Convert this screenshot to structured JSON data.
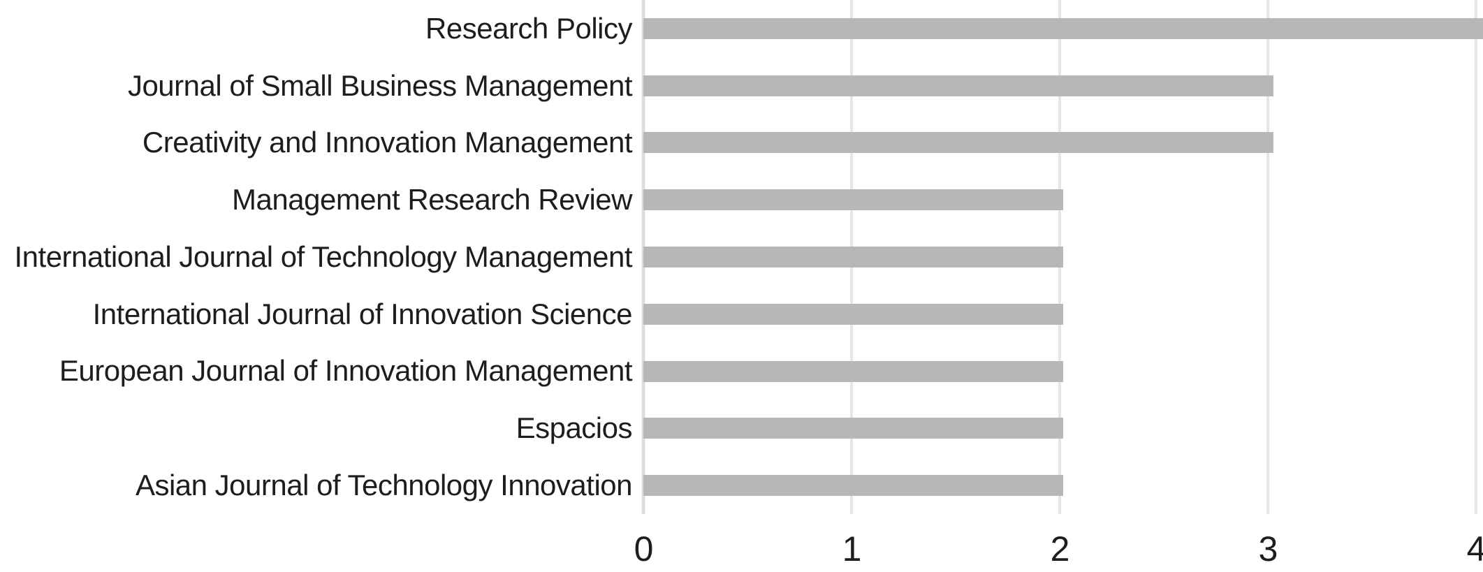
{
  "chart_data": {
    "type": "bar",
    "orientation": "horizontal",
    "title": "",
    "xlabel": "",
    "ylabel": "",
    "categories": [
      "Research Policy",
      "Journal of Small Business Management",
      "Creativity and Innovation Management",
      "Management Research Review",
      "International Journal of Technology Management",
      "International Journal of Innovation Science",
      "European Journal of Innovation Management",
      "Espacios",
      "Asian Journal of Technology Innovation"
    ],
    "values": [
      4,
      3,
      3,
      2,
      2,
      2,
      2,
      2,
      2
    ],
    "xlim": [
      0,
      4
    ],
    "x_ticks": [
      "0",
      "1",
      "2",
      "3",
      "4"
    ],
    "grid": "vertical",
    "legend": "none",
    "colors": {
      "bar": "#b5b7b9",
      "gridline": "#e6e6e9",
      "axis_line": "#dedee2",
      "text": "#1d1d1f",
      "background": "#ffffff"
    }
  }
}
